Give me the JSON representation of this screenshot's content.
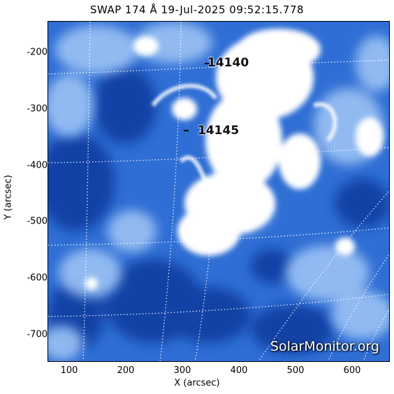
{
  "title": "SWAP 174 Å 19-Jul-2025 09:52:15.778",
  "axes": {
    "xlabel": "X (arcsec)",
    "ylabel": "Y (arcsec)",
    "xticks": [
      "100",
      "200",
      "300",
      "400",
      "500",
      "600"
    ],
    "yticks": [
      "-200",
      "-300",
      "-400",
      "-500",
      "-600",
      "-700"
    ]
  },
  "regions": [
    {
      "id": "14140",
      "label": "14140"
    },
    {
      "id": "14145",
      "label": "14145"
    }
  ],
  "watermark": "SolarMonitor.org",
  "colors": {
    "deep_blue": "#0b3a9e",
    "mid_blue": "#2f6ed4",
    "light_blue": "#9cc3f5",
    "bright": "#ffffff",
    "grid": "#ffffff"
  }
}
